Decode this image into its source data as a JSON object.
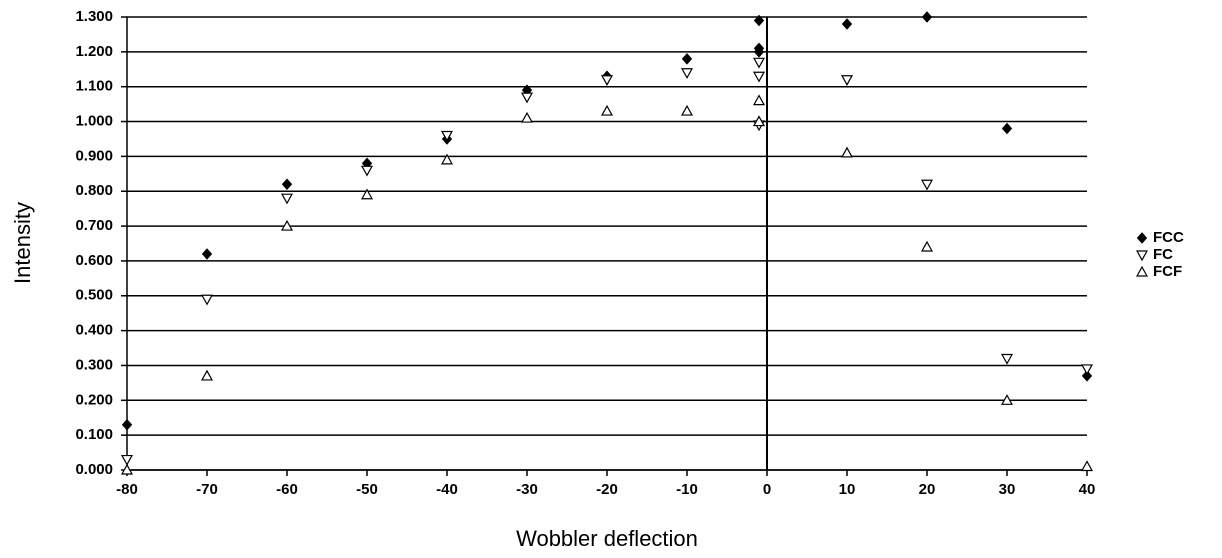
{
  "chart_data": {
    "type": "scatter",
    "xlabel": "Wobbler deflection",
    "ylabel": "Intensity",
    "xlim": [
      -80,
      40
    ],
    "xticks": [
      -80,
      -70,
      -60,
      -50,
      -40,
      -30,
      -20,
      -10,
      0,
      10,
      20,
      30,
      40
    ],
    "ylim": [
      0,
      1.3
    ],
    "yticks": [
      {
        "value": 0,
        "label": "0.000"
      },
      {
        "value": 0.1,
        "label": "0.100"
      },
      {
        "value": 0.2,
        "label": "0.200"
      },
      {
        "value": 0.3,
        "label": "0.300"
      },
      {
        "value": 0.4,
        "label": "0.400"
      },
      {
        "value": 0.5,
        "label": "0.500"
      },
      {
        "value": 0.6,
        "label": "0.600"
      },
      {
        "value": 0.7,
        "label": "0.700"
      },
      {
        "value": 0.8,
        "label": "0.800"
      },
      {
        "value": 0.9,
        "label": "0.900"
      },
      {
        "value": 1.0,
        "label": "1.000"
      },
      {
        "value": 1.1,
        "label": "1.100"
      },
      {
        "value": 1.2,
        "label": "1.200"
      },
      {
        "value": 1.3,
        "label": "1.300"
      }
    ],
    "grid": true,
    "legend": "right",
    "series": [
      {
        "name": "FCC",
        "color": "#000000",
        "marker": "diamond",
        "x": [
          -80,
          -70,
          -60,
          -50,
          -40,
          -30,
          -20,
          -10,
          -1,
          -1,
          -1,
          10,
          20,
          30,
          40
        ],
        "values": [
          0.13,
          0.62,
          0.82,
          0.88,
          0.95,
          1.09,
          1.13,
          1.18,
          1.29,
          1.21,
          1.2,
          1.28,
          1.3,
          0.98,
          0.27
        ]
      },
      {
        "name": "FC",
        "color": "#000000",
        "marker": "triangle-down",
        "x": [
          -80,
          -70,
          -60,
          -50,
          -40,
          -30,
          -20,
          -10,
          -1,
          -1,
          -1,
          10,
          20,
          30,
          40
        ],
        "values": [
          0.03,
          0.49,
          0.78,
          0.86,
          0.96,
          1.07,
          1.12,
          1.14,
          1.17,
          1.13,
          0.99,
          1.12,
          0.82,
          0.32,
          0.29
        ]
      },
      {
        "name": "FCF",
        "color": "#000000",
        "marker": "triangle-up",
        "x": [
          -80,
          -70,
          -60,
          -50,
          -40,
          -30,
          -20,
          -10,
          -1,
          -1,
          10,
          20,
          30,
          40
        ],
        "values": [
          0.0,
          0.27,
          0.7,
          0.79,
          0.89,
          1.01,
          1.03,
          1.03,
          1.06,
          1.0,
          0.91,
          0.64,
          0.2,
          0.01
        ]
      }
    ]
  }
}
